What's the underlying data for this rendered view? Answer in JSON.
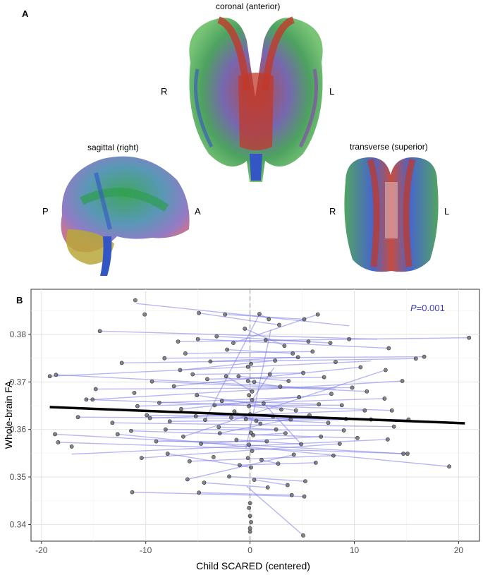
{
  "panel_a": {
    "label": "A",
    "views": {
      "coronal": {
        "title": "coronal (anterior)",
        "left": "R",
        "right": "L"
      },
      "sagittal": {
        "title": "sagittal (right)",
        "left": "P",
        "right": "A"
      },
      "transverse": {
        "title": "transverse (superior)",
        "left": "R",
        "right": "L"
      }
    },
    "colors": {
      "red": "#c0392b",
      "green": "#2e9e4f",
      "blue": "#3455c4",
      "purple": "#8a3fb5",
      "yellow": "#b8a83a"
    }
  },
  "panel_b": {
    "label": "B"
  },
  "chart_data": {
    "type": "scatter",
    "xlabel": "Child SCARED (centered)",
    "ylabel": "Whole-brain FA",
    "xlim": [
      -21,
      22
    ],
    "ylim": [
      0.3365,
      0.3895
    ],
    "xticks": [
      -20,
      -10,
      0,
      10,
      20
    ],
    "yticks": [
      0.34,
      0.35,
      0.36,
      0.37,
      0.38
    ],
    "xtick_labels": [
      "-20",
      "-10",
      "0",
      "10",
      "20"
    ],
    "ytick_labels": [
      "0.34",
      "0.35",
      "0.36",
      "0.37",
      "0.38"
    ],
    "grid": true,
    "vline_x": 0,
    "annotation": {
      "prefix": "P",
      "text": "=0.001"
    },
    "fit_line": {
      "x": [
        -19.2,
        20.6
      ],
      "y": [
        0.3647,
        0.3613
      ],
      "color": "#000000"
    },
    "point_color": "#555555",
    "segment_color": "#7b7bea",
    "points": [
      [
        -11.0,
        0.3872
      ],
      [
        -10.1,
        0.3842
      ],
      [
        -14.4,
        0.3807
      ],
      [
        -4.9,
        0.3845
      ],
      [
        -2.4,
        0.3842
      ],
      [
        0.9,
        0.3843
      ],
      [
        1.8,
        0.3832
      ],
      [
        2.8,
        0.382
      ],
      [
        5.2,
        0.3832
      ],
      [
        6.5,
        0.3842
      ],
      [
        21.0,
        0.3793
      ],
      [
        -0.5,
        0.3812
      ],
      [
        -3.2,
        0.3796
      ],
      [
        -5.0,
        0.379
      ],
      [
        -6.9,
        0.3785
      ],
      [
        -1.6,
        0.3782
      ],
      [
        1.5,
        0.3788
      ],
      [
        3.3,
        0.3776
      ],
      [
        4.1,
        0.376
      ],
      [
        5.6,
        0.3785
      ],
      [
        7.7,
        0.3782
      ],
      [
        9.5,
        0.379
      ],
      [
        13.3,
        0.3771
      ],
      [
        16.7,
        0.3753
      ],
      [
        15.9,
        0.3749
      ],
      [
        -19.2,
        0.3712
      ],
      [
        -18.6,
        0.3715
      ],
      [
        -12.3,
        0.374
      ],
      [
        -8.2,
        0.375
      ],
      [
        -6.2,
        0.376
      ],
      [
        -3.8,
        0.3743
      ],
      [
        -2.2,
        0.3768
      ],
      [
        -0.2,
        0.3732
      ],
      [
        0.1,
        0.3738
      ],
      [
        2.4,
        0.3745
      ],
      [
        4.6,
        0.3752
      ],
      [
        6.0,
        0.3764
      ],
      [
        8.2,
        0.3742
      ],
      [
        10.6,
        0.3731
      ],
      [
        13.0,
        0.3725
      ],
      [
        -14.8,
        0.3685
      ],
      [
        -11.1,
        0.3677
      ],
      [
        -9.4,
        0.3701
      ],
      [
        -7.3,
        0.3691
      ],
      [
        -5.5,
        0.3716
      ],
      [
        -4.1,
        0.3706
      ],
      [
        -1.1,
        0.3712
      ],
      [
        0.4,
        0.37
      ],
      [
        1.9,
        0.3716
      ],
      [
        3.7,
        0.3702
      ],
      [
        5.1,
        0.3719
      ],
      [
        7.1,
        0.371
      ],
      [
        9.8,
        0.3688
      ],
      [
        11.2,
        0.368
      ],
      [
        14.6,
        0.3702
      ],
      [
        -15.7,
        0.3663
      ],
      [
        -15.1,
        0.3663
      ],
      [
        -10.8,
        0.3649
      ],
      [
        -8.7,
        0.3656
      ],
      [
        -6.6,
        0.3643
      ],
      [
        -3.4,
        0.3651
      ],
      [
        -2.7,
        0.366
      ],
      [
        -0.1,
        0.3649
      ],
      [
        0.2,
        0.3662
      ],
      [
        1.3,
        0.3655
      ],
      [
        3.0,
        0.3642
      ],
      [
        4.7,
        0.3668
      ],
      [
        6.6,
        0.3653
      ],
      [
        8.8,
        0.3651
      ],
      [
        12.9,
        0.3665
      ],
      [
        13.6,
        0.364
      ],
      [
        -16.5,
        0.3626
      ],
      [
        -13.2,
        0.3614
      ],
      [
        -9.9,
        0.363
      ],
      [
        -7.7,
        0.3617
      ],
      [
        -5.2,
        0.3628
      ],
      [
        -4.3,
        0.362
      ],
      [
        -1.8,
        0.3625
      ],
      [
        -0.4,
        0.3622
      ],
      [
        0.0,
        0.3632
      ],
      [
        0.6,
        0.3618
      ],
      [
        2.2,
        0.3627
      ],
      [
        3.9,
        0.3621
      ],
      [
        5.7,
        0.363
      ],
      [
        7.5,
        0.3614
      ],
      [
        9.2,
        0.3622
      ],
      [
        11.6,
        0.3621
      ],
      [
        13.8,
        0.3606
      ],
      [
        15.2,
        0.3621
      ],
      [
        -18.7,
        0.359
      ],
      [
        -18.4,
        0.3573
      ],
      [
        -17.1,
        0.3564
      ],
      [
        -12.7,
        0.359
      ],
      [
        -11.4,
        0.3597
      ],
      [
        -9.0,
        0.3575
      ],
      [
        -6.4,
        0.3585
      ],
      [
        -4.7,
        0.357
      ],
      [
        -2.9,
        0.3592
      ],
      [
        -1.3,
        0.3578
      ],
      [
        0.3,
        0.3588
      ],
      [
        1.6,
        0.3575
      ],
      [
        3.4,
        0.3592
      ],
      [
        4.9,
        0.3569
      ],
      [
        6.8,
        0.3585
      ],
      [
        8.6,
        0.357
      ],
      [
        10.3,
        0.3582
      ],
      [
        13.2,
        0.3579
      ],
      [
        14.7,
        0.3549
      ],
      [
        15.1,
        0.3549
      ],
      [
        -10.4,
        0.354
      ],
      [
        -7.9,
        0.3549
      ],
      [
        -5.8,
        0.3533
      ],
      [
        -3.5,
        0.3542
      ],
      [
        -1.0,
        0.3525
      ],
      [
        0.1,
        0.352
      ],
      [
        1.1,
        0.3536
      ],
      [
        2.7,
        0.3528
      ],
      [
        4.2,
        0.3547
      ],
      [
        6.3,
        0.353
      ],
      [
        8.0,
        0.3545
      ],
      [
        19.1,
        0.3522
      ],
      [
        -6.0,
        0.3495
      ],
      [
        -4.4,
        0.3488
      ],
      [
        -2.0,
        0.3501
      ],
      [
        0.4,
        0.3494
      ],
      [
        1.7,
        0.3478
      ],
      [
        3.6,
        0.3483
      ],
      [
        5.3,
        0.3491
      ],
      [
        -4.9,
        0.3467
      ],
      [
        -11.3,
        0.3468
      ],
      [
        4.0,
        0.3462
      ],
      [
        5.2,
        0.3459
      ],
      [
        0.0,
        0.3445
      ],
      [
        -0.1,
        0.3435
      ],
      [
        0.0,
        0.3418
      ],
      [
        0.1,
        0.3405
      ],
      [
        0.0,
        0.3392
      ],
      [
        0.0,
        0.3385
      ],
      [
        5.1,
        0.3377
      ],
      [
        -0.2,
        0.3702
      ],
      [
        0.2,
        0.368
      ],
      [
        -0.1,
        0.3672
      ],
      [
        0.1,
        0.3593
      ],
      [
        -0.1,
        0.3568
      ],
      [
        0.2,
        0.3555
      ],
      [
        -0.2,
        0.354
      ],
      [
        -2.3,
        0.3712
      ],
      [
        2.9,
        0.369
      ],
      [
        -6.7,
        0.3725
      ],
      [
        7.8,
        0.3675
      ],
      [
        -3.0,
        0.3605
      ],
      [
        2.5,
        0.36
      ],
      [
        -8.1,
        0.36
      ],
      [
        9.0,
        0.3598
      ],
      [
        -5.1,
        0.3672
      ],
      [
        4.4,
        0.364
      ],
      [
        -1.5,
        0.3638
      ],
      [
        1.0,
        0.3612
      ],
      [
        -9.6,
        0.3624
      ],
      [
        11.0,
        0.364
      ]
    ],
    "segments": [
      [
        -10.9,
        0.3865,
        9.5,
        0.3818
      ],
      [
        -14.4,
        0.3807,
        12.2,
        0.379
      ],
      [
        -19.2,
        0.3712,
        11.6,
        0.3744
      ],
      [
        -18.6,
        0.3715,
        8.2,
        0.3685
      ],
      [
        -12.3,
        0.374,
        15.9,
        0.3749
      ],
      [
        -8.2,
        0.375,
        16.7,
        0.3753
      ],
      [
        -5.0,
        0.379,
        13.3,
        0.3771
      ],
      [
        -6.9,
        0.3785,
        21.0,
        0.3793
      ],
      [
        -15.7,
        0.3663,
        13.6,
        0.364
      ],
      [
        -15.1,
        0.3663,
        14.6,
        0.3702
      ],
      [
        -16.5,
        0.3626,
        15.2,
        0.3621
      ],
      [
        -18.7,
        0.359,
        14.7,
        0.3549
      ],
      [
        -18.4,
        0.3573,
        15.1,
        0.3549
      ],
      [
        -17.1,
        0.3548,
        13.2,
        0.3579
      ],
      [
        -13.2,
        0.3614,
        13.8,
        0.3606
      ],
      [
        -12.7,
        0.359,
        19.1,
        0.3522
      ],
      [
        -11.4,
        0.3597,
        10.3,
        0.3582
      ],
      [
        -10.8,
        0.3649,
        12.9,
        0.3665
      ],
      [
        -10.4,
        0.354,
        8.6,
        0.357
      ],
      [
        -11.3,
        0.3468,
        5.2,
        0.3459
      ],
      [
        -14.8,
        0.3685,
        9.8,
        0.3688
      ],
      [
        -9.4,
        0.3701,
        11.2,
        0.368
      ],
      [
        -7.7,
        0.3617,
        11.6,
        0.3621
      ],
      [
        -7.3,
        0.3691,
        10.6,
        0.3731
      ],
      [
        -6.4,
        0.3585,
        13.0,
        0.3725
      ],
      [
        -5.8,
        0.3533,
        8.0,
        0.3545
      ],
      [
        -6.0,
        0.3495,
        4.2,
        0.3547
      ],
      [
        -4.9,
        0.3467,
        4.0,
        0.3462
      ],
      [
        -4.7,
        0.357,
        6.8,
        0.3585
      ],
      [
        -4.1,
        0.3706,
        7.1,
        0.371
      ],
      [
        -3.4,
        0.3651,
        8.8,
        0.3651
      ],
      [
        -2.7,
        0.366,
        6.6,
        0.3653
      ],
      [
        -2.9,
        0.3592,
        5.7,
        0.363
      ],
      [
        -2.2,
        0.3768,
        4.1,
        0.376
      ],
      [
        -3.2,
        0.3796,
        7.7,
        0.3782
      ],
      [
        -1.6,
        0.3782,
        6.5,
        0.3842
      ],
      [
        -2.4,
        0.3842,
        5.2,
        0.3832
      ],
      [
        -4.9,
        0.3845,
        2.8,
        0.382
      ],
      [
        -1.8,
        0.3625,
        9.2,
        0.3622
      ],
      [
        -1.3,
        0.3578,
        4.9,
        0.3569
      ],
      [
        -1.0,
        0.3525,
        6.3,
        0.353
      ],
      [
        -2.0,
        0.3501,
        5.3,
        0.3491
      ],
      [
        -0.4,
        0.3622,
        7.5,
        0.3614
      ],
      [
        0.3,
        0.3588,
        3.4,
        0.3592
      ],
      [
        0.6,
        0.3618,
        3.9,
        0.3621
      ],
      [
        -5.5,
        0.3716,
        5.1,
        0.3719
      ],
      [
        -6.2,
        0.376,
        6.0,
        0.3764
      ],
      [
        -3.8,
        0.3743,
        4.6,
        0.3752
      ],
      [
        -1.1,
        0.3712,
        3.7,
        0.3702
      ],
      [
        -0.5,
        0.3812,
        3.3,
        0.3776
      ],
      [
        1.5,
        0.3788,
        5.6,
        0.3785
      ],
      [
        -8.7,
        0.3656,
        4.7,
        0.3668
      ],
      [
        -9.0,
        0.3575,
        1.6,
        0.3575
      ],
      [
        -9.9,
        0.363,
        2.2,
        0.3627
      ],
      [
        -5.2,
        0.3628,
        0.0,
        0.3632
      ],
      [
        0.9,
        0.3843,
        1.8,
        0.3832
      ],
      [
        -7.9,
        0.3549,
        0.1,
        0.352
      ],
      [
        1.1,
        0.3536,
        2.7,
        0.3528
      ],
      [
        -0.1,
        0.3649,
        3.0,
        0.3642
      ],
      [
        -4.4,
        0.3488,
        1.7,
        0.3478
      ],
      [
        0.4,
        0.3494,
        3.6,
        0.3483
      ],
      [
        -0.2,
        0.3702,
        2.9,
        0.369
      ],
      [
        -2.3,
        0.3712,
        0.2,
        0.368
      ],
      [
        -6.7,
        0.3725,
        2.4,
        0.3745
      ],
      [
        -3.0,
        0.3605,
        2.5,
        0.36
      ],
      [
        -8.1,
        0.36,
        9.0,
        0.3598
      ],
      [
        -5.1,
        0.3672,
        4.4,
        0.364
      ],
      [
        -1.5,
        0.3638,
        1.0,
        0.3612
      ],
      [
        -9.6,
        0.3624,
        11.0,
        0.364
      ],
      [
        -6.6,
        0.3643,
        7.8,
        0.3675
      ],
      [
        -0.3,
        0.348,
        5.1,
        0.3377
      ],
      [
        1.3,
        0.3655,
        4.9,
        0.3569
      ],
      [
        0.2,
        0.3662,
        2.3,
        0.373
      ],
      [
        -4.3,
        0.362,
        0.9,
        0.3843
      ],
      [
        -0.4,
        0.356,
        2.0,
        0.381
      ]
    ]
  }
}
